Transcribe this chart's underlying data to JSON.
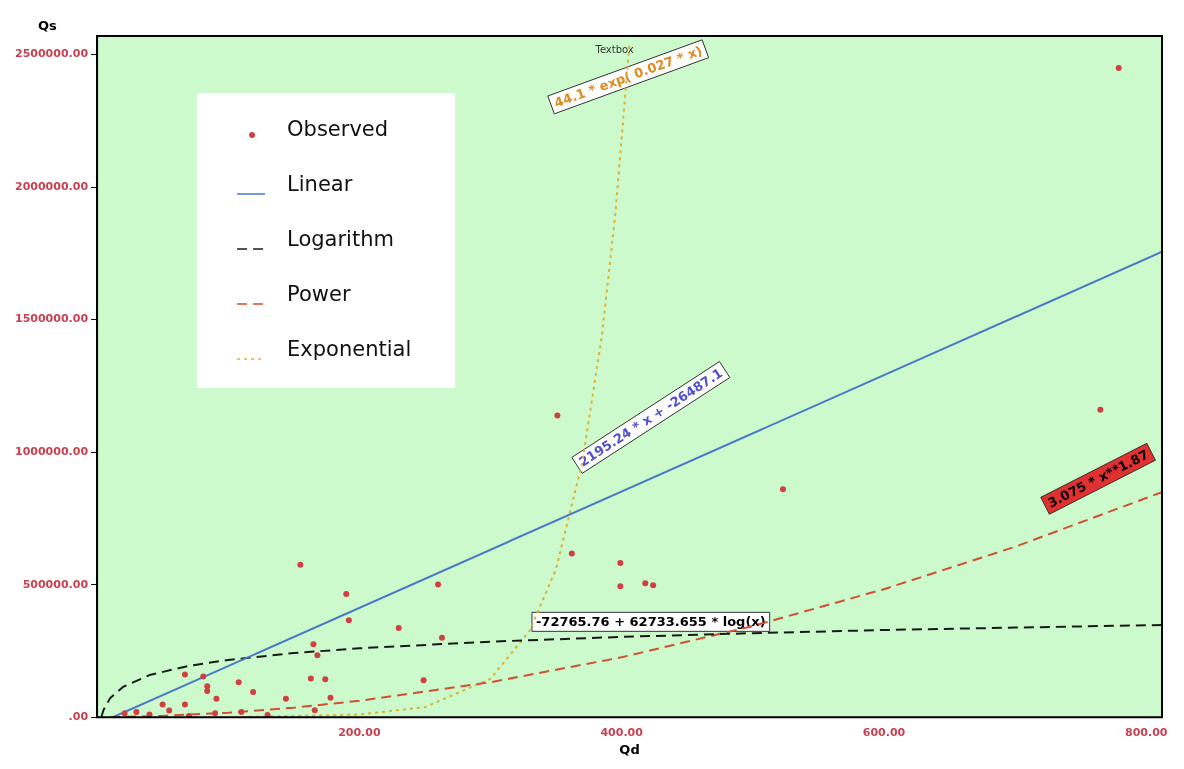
{
  "chart_data": {
    "type": "scatter",
    "xlabel": "Qd",
    "ylabel": "Qs",
    "xlim": [
      0,
      812
    ],
    "ylim": [
      0,
      2570000
    ],
    "xticks": [
      {
        "value": 200,
        "label": "200.00"
      },
      {
        "value": 400,
        "label": "400.00"
      },
      {
        "value": 600,
        "label": "600.00"
      },
      {
        "value": 800,
        "label": "800.00"
      }
    ],
    "yticks": [
      {
        "value": 0,
        "label": ".00"
      },
      {
        "value": 500000,
        "label": "500000.00"
      },
      {
        "value": 1000000,
        "label": "1000000.00"
      },
      {
        "value": 1500000,
        "label": "1500000.00"
      },
      {
        "value": 2000000,
        "label": "2000000.00"
      },
      {
        "value": 2500000,
        "label": "2500000.00"
      }
    ],
    "grid": false,
    "legend": "top left",
    "series": [
      {
        "name": "Observed",
        "marker": "circle",
        "color": "#d04040",
        "x": [
          779,
          351,
          765,
          523,
          362,
          399,
          399,
          418,
          424,
          155,
          190,
          260,
          192,
          230,
          263,
          165,
          168,
          67,
          81,
          108,
          163,
          174,
          249,
          84,
          84,
          91,
          119,
          144,
          50,
          67,
          178,
          166,
          21,
          30,
          40,
          55,
          70,
          90,
          110,
          130
        ],
        "values": [
          2449000,
          1138000,
          1160000,
          860000,
          618000,
          582000,
          494000,
          505000,
          498000,
          575000,
          465000,
          501000,
          366000,
          337000,
          300000,
          275000,
          234000,
          161000,
          154000,
          132000,
          146000,
          143000,
          139000,
          117000,
          99000,
          70000,
          95000,
          70000,
          48000,
          48000,
          73000,
          26000,
          15000,
          20000,
          10000,
          25000,
          5000,
          15000,
          20000,
          8000
        ]
      },
      {
        "name": "Linear",
        "type": "line",
        "marker": "none",
        "line_style": "solid",
        "color": "#4a78c8",
        "x": [
          12.1,
          812
        ],
        "values": [
          0,
          1756000
        ]
      },
      {
        "name": "Logarithm",
        "type": "line",
        "marker": "none",
        "line_style": "dashed",
        "color": "#1a1a1a",
        "x": [
          3.2,
          5,
          10,
          20,
          40,
          70,
          100,
          150,
          200,
          300,
          400,
          500,
          600,
          700,
          812
        ],
        "values": [
          0,
          28000,
          72000,
          115000,
          159000,
          194000,
          216000,
          242000,
          260000,
          285000,
          303000,
          317000,
          329000,
          338000,
          348000
        ]
      },
      {
        "name": "Power",
        "type": "line",
        "marker": "none",
        "line_style": "dashed",
        "color": "#d05030",
        "x": [
          10,
          50,
          100,
          150,
          200,
          300,
          400,
          500,
          600,
          700,
          812
        ],
        "values": [
          0,
          5000,
          17000,
          36000,
          62000,
          132000,
          226000,
          344000,
          483000,
          643000,
          849000
        ]
      },
      {
        "name": "Exponential",
        "type": "line",
        "marker": "none",
        "line_style": "dotted",
        "color": "#e0b030",
        "x": [
          100,
          200,
          250,
          300,
          330,
          350,
          370,
          385,
          395,
          406
        ],
        "values": [
          0,
          10000,
          38000,
          145000,
          327000,
          560000,
          962000,
          1442000,
          1889000,
          2542000
        ]
      }
    ],
    "annotations": [
      {
        "text": "44.1 * exp( 0.027 * x)",
        "x": 405,
        "y": 2416000
      },
      "2195.24 * x + -26487.1",
      "3.075 * x**1.87",
      "-72765.76 + 62733.655 * log(x)",
      "Textbox"
    ]
  }
}
